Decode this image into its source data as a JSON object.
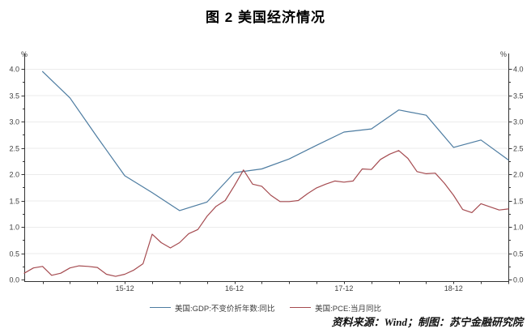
{
  "footer": {
    "text": "资料来源：Wind；制图：苏宁金融研究院"
  },
  "chart_data": {
    "type": "line",
    "title": "图 2 美国经济情况",
    "grid": "horizontal-major",
    "legend_position": "bottom",
    "y_axis": {
      "unit": "%",
      "min": 0,
      "max": 4,
      "major_step": 0.5,
      "minor_step": 0.25,
      "dual_axis": true,
      "tick_labels": [
        "0.0",
        "0.5",
        "1.0",
        "1.5",
        "2.0",
        "2.5",
        "3.0",
        "3.5",
        "4.0"
      ]
    },
    "x_axis": {
      "tick_labels": [
        "15-12",
        "16-12",
        "17-12",
        "18-12"
      ],
      "tick_month_indices": [
        11,
        23,
        35,
        47
      ],
      "minor_tick_every_months": 3
    },
    "months": [
      "15-01",
      "15-02",
      "15-03",
      "15-04",
      "15-05",
      "15-06",
      "15-07",
      "15-08",
      "15-09",
      "15-10",
      "15-11",
      "15-12",
      "16-01",
      "16-02",
      "16-03",
      "16-04",
      "16-05",
      "16-06",
      "16-07",
      "16-08",
      "16-09",
      "16-10",
      "16-11",
      "16-12",
      "17-01",
      "17-02",
      "17-03",
      "17-04",
      "17-05",
      "17-06",
      "17-07",
      "17-08",
      "17-09",
      "17-10",
      "17-11",
      "17-12",
      "18-01",
      "18-02",
      "18-03",
      "18-04",
      "18-05",
      "18-06",
      "18-07",
      "18-08",
      "18-09",
      "18-10",
      "18-11",
      "18-12",
      "19-01",
      "19-02",
      "19-03",
      "19-04",
      "19-05",
      "19-06"
    ],
    "series": [
      {
        "name": "美国:GDP:不变价折年数:同比",
        "color": "#4d7ca1",
        "frequency": "quarterly",
        "month_indices": [
          2,
          5,
          8,
          11,
          14,
          17,
          20,
          23,
          26,
          29,
          32,
          35,
          38,
          41,
          44,
          47,
          50,
          53
        ],
        "values": [
          3.95,
          3.45,
          2.7,
          1.97,
          1.65,
          1.31,
          1.47,
          2.03,
          2.1,
          2.29,
          2.55,
          2.8,
          2.86,
          3.22,
          3.12,
          2.51,
          2.65,
          2.27
        ]
      },
      {
        "name": "美国:PCE:当月同比",
        "color": "#a54b50",
        "frequency": "monthly",
        "values": [
          0.12,
          0.22,
          0.25,
          0.08,
          0.12,
          0.22,
          0.26,
          0.25,
          0.23,
          0.1,
          0.06,
          0.1,
          0.18,
          0.3,
          0.86,
          0.7,
          0.6,
          0.7,
          0.87,
          0.95,
          1.2,
          1.39,
          1.5,
          1.78,
          2.08,
          1.81,
          1.77,
          1.6,
          1.48,
          1.48,
          1.5,
          1.63,
          1.74,
          1.81,
          1.87,
          1.85,
          1.87,
          2.1,
          2.09,
          2.28,
          2.38,
          2.45,
          2.3,
          2.05,
          2.01,
          2.02,
          1.83,
          1.6,
          1.33,
          1.27,
          1.44,
          1.38,
          1.32,
          1.34
        ]
      }
    ]
  }
}
